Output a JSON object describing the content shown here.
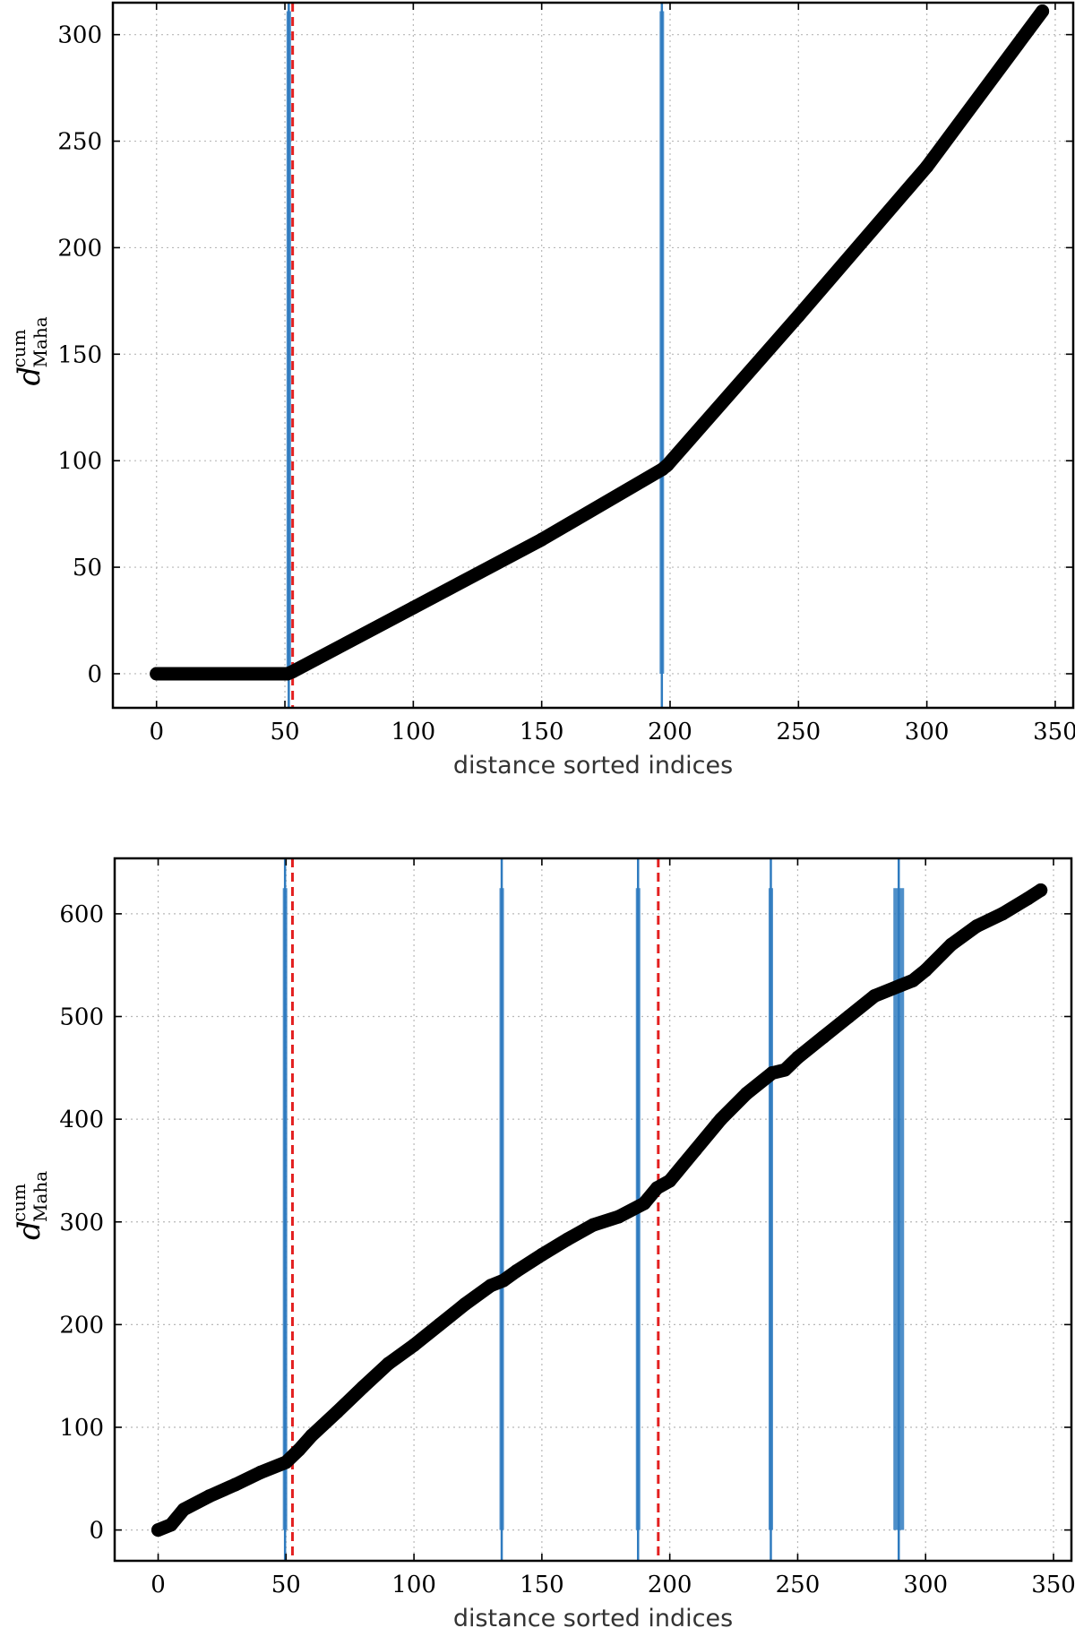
{
  "chart_data": [
    {
      "type": "line",
      "xlabel": "distance sorted indices",
      "ylabel": {
        "main": "d",
        "sup": "cum",
        "sub": "Maha"
      },
      "xlim": [
        -17,
        357
      ],
      "ylim": [
        -16,
        315
      ],
      "xticks": [
        0,
        50,
        100,
        150,
        200,
        250,
        300,
        350
      ],
      "yticks": [
        0,
        50,
        100,
        150,
        200,
        250,
        300
      ],
      "grid": true,
      "series": [
        {
          "x": [
            0,
            51,
            53,
            100,
            150,
            197,
            199,
            250,
            300,
            345
          ],
          "y": [
            0,
            0,
            1,
            31,
            63,
            96,
            98,
            168,
            238,
            311
          ]
        }
      ],
      "vlines": [
        {
          "x": 51.5,
          "ymax": 311,
          "band": 1.0
        },
        {
          "x": 196.8,
          "ymax": 311,
          "band": 1.0
        }
      ],
      "reflines": [
        53
      ]
    },
    {
      "type": "line",
      "xlabel": "distance sorted indices",
      "ylabel": {
        "main": "d",
        "sup": "cum",
        "sub": "Maha"
      },
      "xlim": [
        -17,
        357
      ],
      "ylim": [
        -30,
        654
      ],
      "xticks": [
        0,
        50,
        100,
        150,
        200,
        250,
        300,
        350
      ],
      "yticks": [
        0,
        100,
        200,
        300,
        400,
        500,
        600
      ],
      "grid": true,
      "series": [
        {
          "x": [
            0,
            5,
            10,
            20,
            30,
            40,
            50,
            55,
            60,
            70,
            80,
            90,
            100,
            110,
            120,
            130,
            135,
            140,
            150,
            160,
            170,
            180,
            190,
            195,
            200,
            210,
            220,
            230,
            240,
            245,
            250,
            260,
            270,
            280,
            290,
            295,
            300,
            310,
            320,
            330,
            340,
            345
          ],
          "y": [
            0,
            5,
            20,
            33,
            44,
            56,
            66,
            78,
            92,
            115,
            139,
            162,
            180,
            200,
            220,
            238,
            243,
            252,
            268,
            283,
            297,
            305,
            318,
            333,
            340,
            370,
            400,
            425,
            445,
            448,
            460,
            480,
            500,
            520,
            530,
            535,
            545,
            570,
            588,
            600,
            615,
            623
          ]
        }
      ],
      "vlines": [
        {
          "x": 49.6,
          "ymax": 625,
          "band": 1.0
        },
        {
          "x": 134.3,
          "ymax": 625,
          "band": 1.0
        },
        {
          "x": 187.6,
          "ymax": 625,
          "band": 1.0
        },
        {
          "x": 239.5,
          "ymax": 625,
          "band": 1.0
        },
        {
          "x": 289.5,
          "ymax": 625,
          "band": 3.0
        }
      ],
      "reflines": [
        52.5,
        195.5
      ]
    }
  ]
}
